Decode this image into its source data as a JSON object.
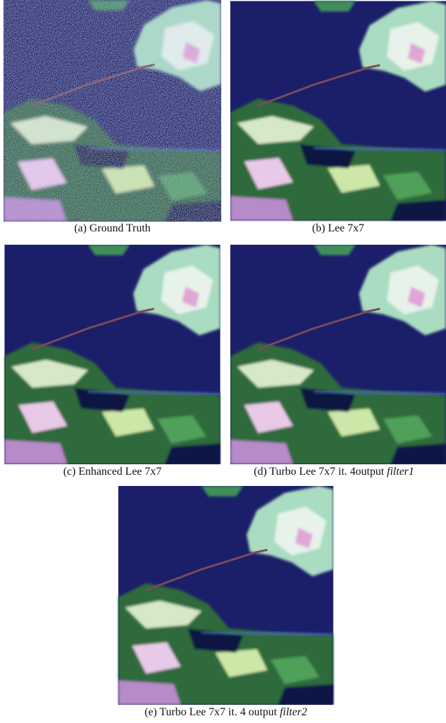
{
  "figure": {
    "panels": [
      {
        "caption": "(a) Ground Truth"
      },
      {
        "caption": "(b) Lee 7x7"
      },
      {
        "caption": "(c) Enhanced Lee 7x7"
      },
      {
        "caption": "(d) Turbo Lee 7x7 it. 4output",
        "caption_italic": "filter1"
      },
      {
        "caption": "(e) Turbo Lee 7x7 it. 4 output",
        "caption_italic": "filter2"
      }
    ]
  }
}
